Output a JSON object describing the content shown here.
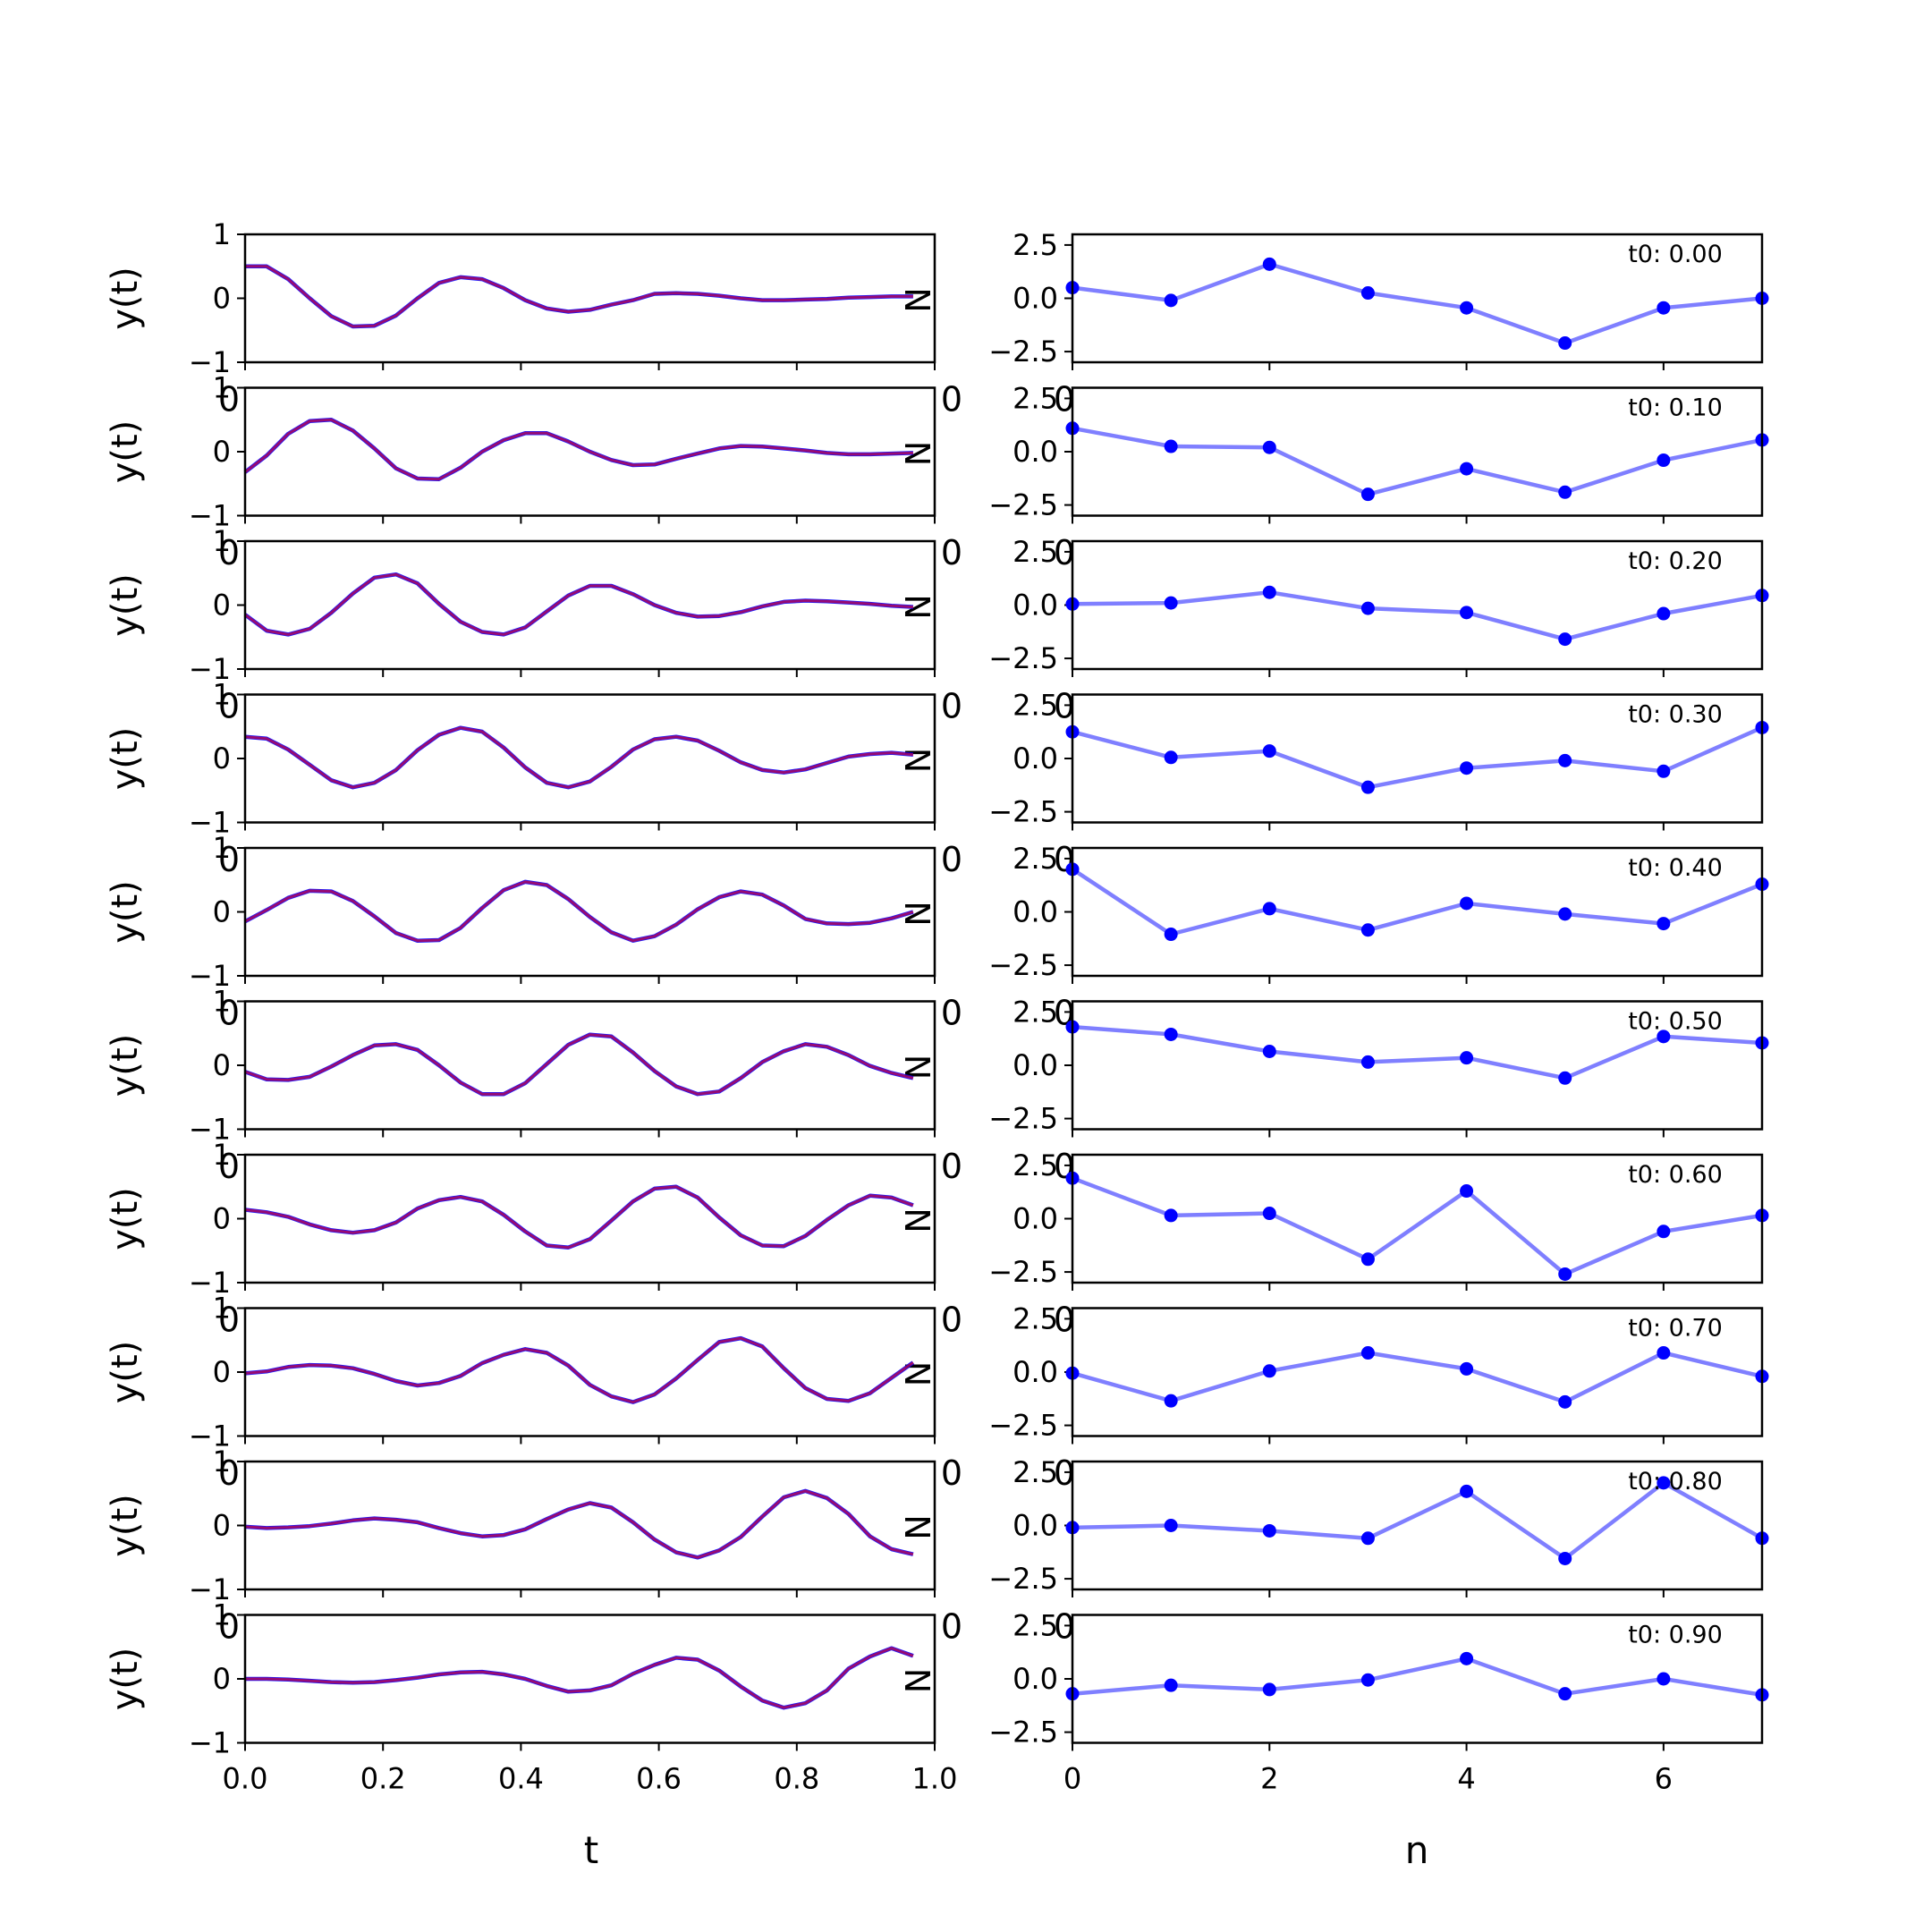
{
  "chart_data": {
    "type": "line",
    "layout": "10 rows x 2 columns of subplots",
    "colors": {
      "reconstruction": "#ff0000",
      "signal": "#0000ff",
      "coefficients": "#0000ff"
    },
    "left_column": {
      "xlabel": "t",
      "ylabel": "y(t)",
      "xlim": [
        0,
        1
      ],
      "ylim": [
        -1,
        1
      ],
      "xticks": [
        "0.0",
        "0.2",
        "0.4",
        "0.6",
        "0.8",
        "1.0"
      ],
      "yticks": [
        "1",
        "0",
        "−1"
      ],
      "stray_tick_labels": {
        "left": "0",
        "right": "N"
      },
      "t": [
        0,
        0.03125,
        0.0625,
        0.09375,
        0.125,
        0.15625,
        0.1875,
        0.21875,
        0.25,
        0.28125,
        0.3125,
        0.34375,
        0.375,
        0.40625,
        0.4375,
        0.46875,
        0.5,
        0.53125,
        0.5625,
        0.59375,
        0.625,
        0.65625,
        0.6875,
        0.71875,
        0.75,
        0.78125,
        0.8125,
        0.84375,
        0.875,
        0.90625,
        0.9375,
        0.96875
      ],
      "series": [
        {
          "values": [
            0.5,
            0.5,
            0.3,
            0.0,
            -0.28,
            -0.44,
            -0.43,
            -0.27,
            0.0,
            0.24,
            0.33,
            0.3,
            0.16,
            -0.03,
            -0.16,
            -0.21,
            -0.18,
            -0.1,
            -0.03,
            0.07,
            0.08,
            0.07,
            0.04,
            0.0,
            -0.03,
            -0.03,
            -0.02,
            -0.01,
            0.01,
            0.02,
            0.03,
            0.03
          ]
        },
        {
          "values": [
            -0.32,
            -0.06,
            0.28,
            0.48,
            0.5,
            0.33,
            0.05,
            -0.26,
            -0.42,
            -0.43,
            -0.25,
            0.0,
            0.18,
            0.29,
            0.29,
            0.16,
            0.0,
            -0.13,
            -0.21,
            -0.2,
            -0.11,
            -0.03,
            0.05,
            0.09,
            0.08,
            0.05,
            0.02,
            -0.02,
            -0.04,
            -0.04,
            -0.03,
            -0.02
          ]
        },
        {
          "values": [
            -0.15,
            -0.4,
            -0.46,
            -0.37,
            -0.12,
            0.18,
            0.43,
            0.48,
            0.34,
            0.02,
            -0.26,
            -0.42,
            -0.46,
            -0.35,
            -0.1,
            0.15,
            0.3,
            0.3,
            0.17,
            0.0,
            -0.12,
            -0.18,
            -0.17,
            -0.11,
            -0.02,
            0.05,
            0.07,
            0.06,
            0.04,
            0.02,
            -0.01,
            -0.03
          ]
        },
        {
          "values": [
            0.34,
            0.31,
            0.14,
            -0.1,
            -0.34,
            -0.45,
            -0.38,
            -0.18,
            0.13,
            0.37,
            0.48,
            0.42,
            0.17,
            -0.14,
            -0.38,
            -0.45,
            -0.36,
            -0.13,
            0.14,
            0.3,
            0.34,
            0.28,
            0.12,
            -0.06,
            -0.18,
            -0.22,
            -0.17,
            -0.07,
            0.03,
            0.07,
            0.09,
            0.06
          ]
        },
        {
          "values": [
            -0.15,
            0.03,
            0.22,
            0.33,
            0.32,
            0.17,
            -0.07,
            -0.33,
            -0.45,
            -0.44,
            -0.25,
            0.06,
            0.34,
            0.47,
            0.42,
            0.2,
            -0.08,
            -0.32,
            -0.45,
            -0.38,
            -0.2,
            0.04,
            0.23,
            0.32,
            0.27,
            0.1,
            -0.11,
            -0.18,
            -0.19,
            -0.17,
            -0.1,
            0.0
          ]
        },
        {
          "values": [
            -0.1,
            -0.22,
            -0.23,
            -0.18,
            -0.02,
            0.16,
            0.31,
            0.33,
            0.24,
            0.0,
            -0.27,
            -0.45,
            -0.45,
            -0.28,
            0.02,
            0.32,
            0.48,
            0.45,
            0.2,
            -0.09,
            -0.33,
            -0.45,
            -0.41,
            -0.2,
            0.05,
            0.22,
            0.33,
            0.29,
            0.16,
            -0.01,
            -0.12,
            -0.2
          ]
        },
        {
          "values": [
            0.14,
            0.1,
            0.03,
            -0.09,
            -0.18,
            -0.22,
            -0.18,
            -0.06,
            0.16,
            0.29,
            0.34,
            0.27,
            0.06,
            -0.2,
            -0.42,
            -0.45,
            -0.32,
            -0.03,
            0.27,
            0.47,
            0.5,
            0.33,
            0.02,
            -0.26,
            -0.42,
            -0.43,
            -0.27,
            -0.02,
            0.21,
            0.36,
            0.33,
            0.21
          ]
        },
        {
          "values": [
            -0.02,
            0.01,
            0.08,
            0.11,
            0.1,
            0.06,
            -0.03,
            -0.14,
            -0.21,
            -0.17,
            -0.06,
            0.14,
            0.27,
            0.36,
            0.3,
            0.1,
            -0.2,
            -0.38,
            -0.47,
            -0.35,
            -0.1,
            0.19,
            0.47,
            0.53,
            0.4,
            0.06,
            -0.25,
            -0.42,
            -0.45,
            -0.33,
            -0.09,
            0.15
          ]
        },
        {
          "values": [
            -0.02,
            -0.04,
            -0.03,
            -0.01,
            0.03,
            0.08,
            0.11,
            0.09,
            0.05,
            -0.04,
            -0.12,
            -0.17,
            -0.15,
            -0.06,
            0.1,
            0.25,
            0.35,
            0.28,
            0.05,
            -0.22,
            -0.42,
            -0.5,
            -0.39,
            -0.18,
            0.14,
            0.44,
            0.54,
            0.43,
            0.18,
            -0.17,
            -0.37,
            -0.45
          ]
        },
        {
          "values": [
            0.0,
            0.0,
            -0.01,
            -0.03,
            -0.05,
            -0.06,
            -0.05,
            -0.02,
            0.02,
            0.07,
            0.1,
            0.11,
            0.07,
            0.0,
            -0.11,
            -0.2,
            -0.18,
            -0.1,
            0.08,
            0.22,
            0.33,
            0.3,
            0.13,
            -0.12,
            -0.34,
            -0.45,
            -0.38,
            -0.18,
            0.16,
            0.35,
            0.48,
            0.36
          ]
        }
      ]
    },
    "right_column": {
      "xlabel": "n",
      "xlim": [
        0,
        7
      ],
      "ylim": [
        -3,
        3
      ],
      "xticks": [
        "0",
        "2",
        "4",
        "6"
      ],
      "yticks": [
        "2.5",
        "0.0",
        "−2.5"
      ],
      "stray_tick_labels": {
        "left": "0",
        "right": "0"
      },
      "n": [
        0,
        1,
        2,
        3,
        4,
        5,
        6,
        7
      ],
      "panels": [
        {
          "annotation": "t0: 0.00",
          "values": [
            0.5,
            -0.1,
            1.6,
            0.25,
            -0.45,
            -2.1,
            -0.45,
            0.0
          ]
        },
        {
          "annotation": "t0: 0.10",
          "values": [
            1.1,
            0.25,
            0.2,
            -2.0,
            -0.8,
            -1.9,
            -0.4,
            0.55
          ]
        },
        {
          "annotation": "t0: 0.20",
          "values": [
            0.05,
            0.1,
            0.6,
            -0.15,
            -0.35,
            -1.6,
            -0.4,
            0.45
          ]
        },
        {
          "annotation": "t0: 0.30",
          "values": [
            1.25,
            0.05,
            0.35,
            -1.35,
            -0.45,
            -0.1,
            -0.6,
            1.45
          ]
        },
        {
          "annotation": "t0: 0.40",
          "values": [
            2.0,
            -1.05,
            0.15,
            -0.85,
            0.4,
            -0.1,
            -0.55,
            1.3
          ]
        },
        {
          "annotation": "t0: 0.50",
          "values": [
            1.8,
            1.45,
            0.65,
            0.15,
            0.35,
            -0.6,
            1.35,
            1.05
          ]
        },
        {
          "annotation": "t0: 0.60",
          "values": [
            1.9,
            0.15,
            0.25,
            -1.9,
            1.3,
            -2.6,
            -0.6,
            0.15
          ]
        },
        {
          "annotation": "t0: 0.70",
          "values": [
            -0.05,
            -1.35,
            0.05,
            0.9,
            0.15,
            -1.4,
            0.9,
            -0.2
          ]
        },
        {
          "annotation": "t0: 0.80",
          "values": [
            -0.1,
            0.0,
            -0.25,
            -0.6,
            1.6,
            -1.55,
            2.0,
            -0.6
          ]
        },
        {
          "annotation": "t0: 0.90",
          "values": [
            -0.7,
            -0.3,
            -0.5,
            -0.05,
            0.95,
            -0.7,
            0.0,
            -0.75
          ]
        }
      ]
    }
  }
}
